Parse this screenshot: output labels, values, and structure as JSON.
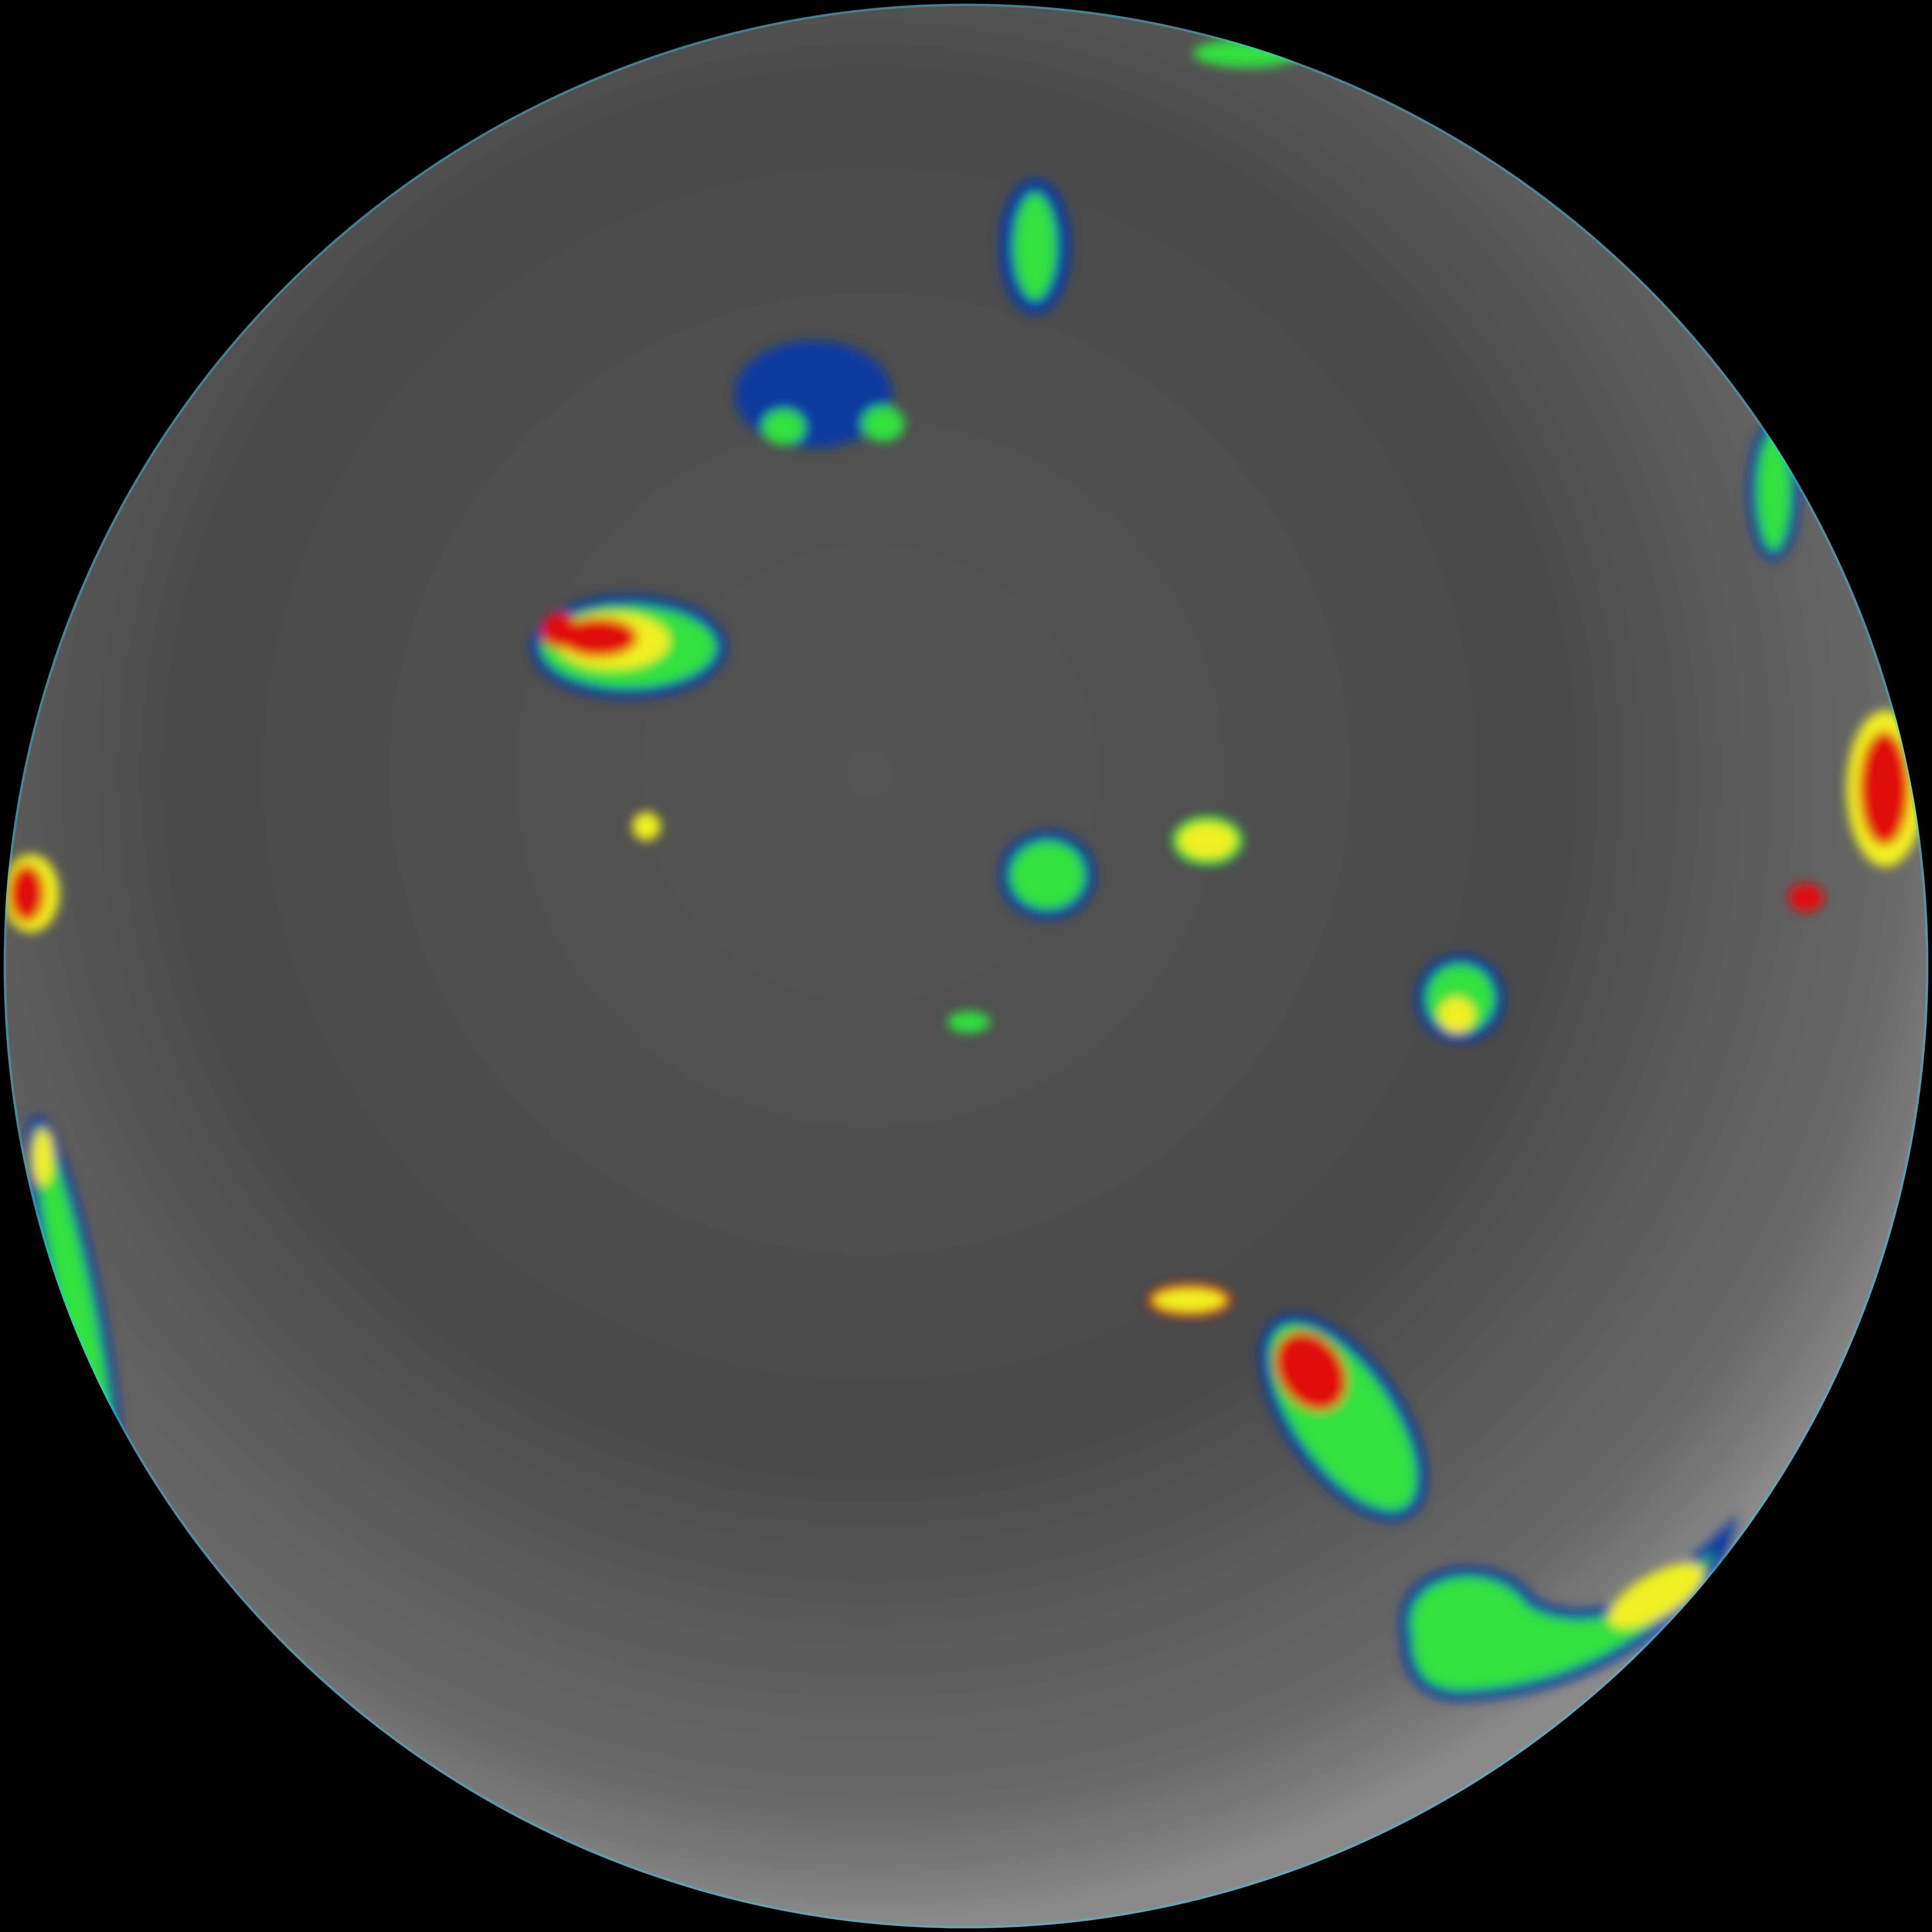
{
  "image": {
    "kind": "full-disk infrared satellite view of Earth (Americas)",
    "colors": {
      "space": "#000000",
      "disk_light": "#8a8a8a",
      "disk_mid": "#5e5e5e",
      "disk_dark": "#3c3c3c",
      "cloud_white": "#d8d8d8",
      "enhance_cyan": "#30c8f0",
      "enhance_blue": "#0a3aa0",
      "enhance_green": "#30e040",
      "enhance_yellow": "#f0f020",
      "enhance_red": "#e01010",
      "borders": "#e8e8e8"
    }
  }
}
